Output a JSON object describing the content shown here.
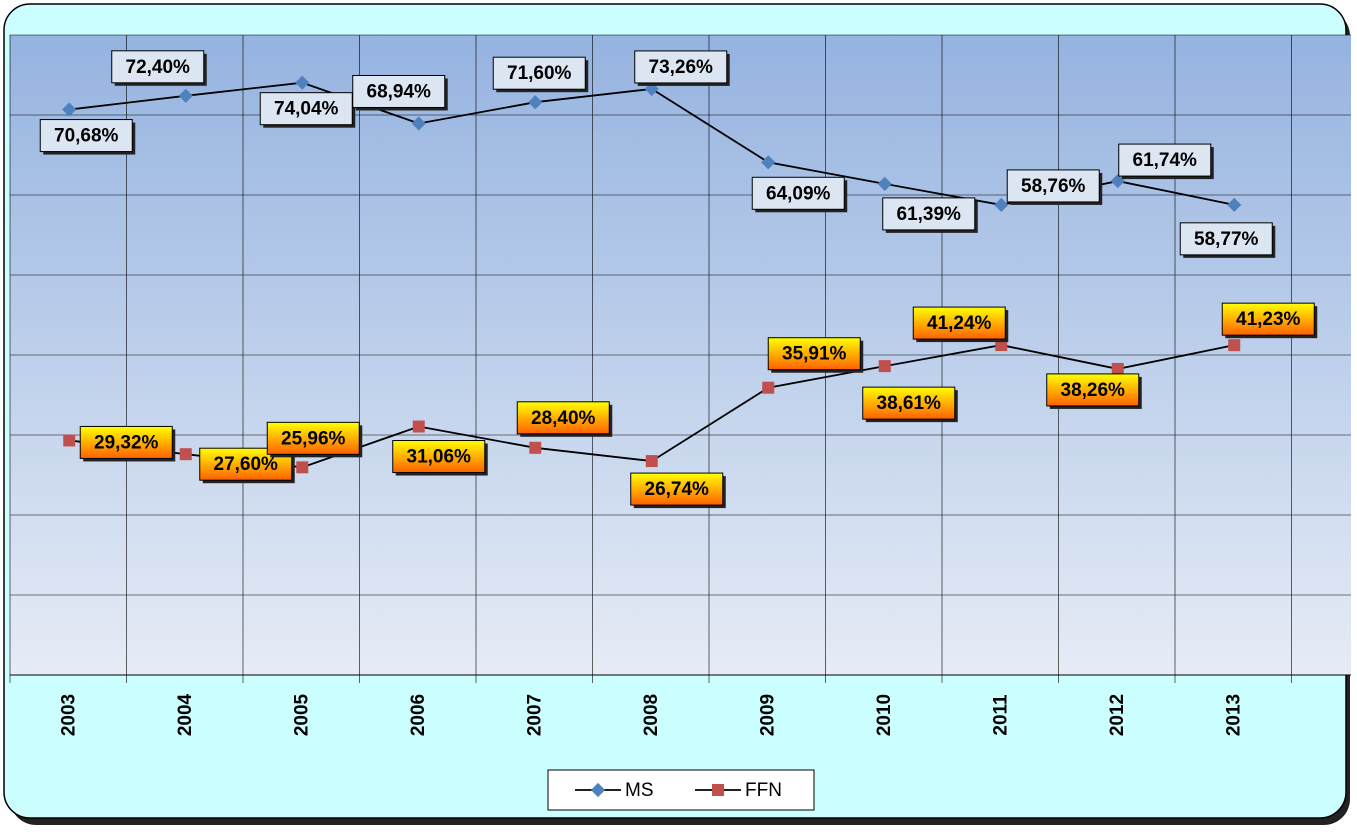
{
  "chart_data": {
    "type": "line",
    "categories": [
      "2003",
      "2004",
      "2005",
      "2006",
      "2007",
      "2008",
      "2009",
      "2010",
      "2011",
      "2012",
      "2013"
    ],
    "series": [
      {
        "name": "MS",
        "color": "#4f81bd",
        "values": [
          70.68,
          72.4,
          74.04,
          68.94,
          71.6,
          73.26,
          64.09,
          61.39,
          58.76,
          61.74,
          58.77
        ],
        "value_labels": [
          "70,68%",
          "72,40%",
          "74,04%",
          "68,94%",
          "71,60%",
          "73,26%",
          "64,09%",
          "61,39%",
          "58,76%",
          "61,74%",
          "58,77%"
        ]
      },
      {
        "name": "FFN",
        "color": "#c0504d",
        "values": [
          29.32,
          27.6,
          25.96,
          31.06,
          28.4,
          26.74,
          35.91,
          38.61,
          41.24,
          38.26,
          41.23
        ],
        "value_labels": [
          "29,32%",
          "27,60%",
          "25,96%",
          "31,06%",
          "28,40%",
          "26,74%",
          "35,91%",
          "38,61%",
          "41,24%",
          "38,26%",
          "41,23%"
        ]
      }
    ],
    "ylim": [
      0,
      80
    ],
    "yticks": [
      0,
      10,
      20,
      30,
      40,
      50,
      60,
      70,
      80
    ],
    "grid": true
  }
}
